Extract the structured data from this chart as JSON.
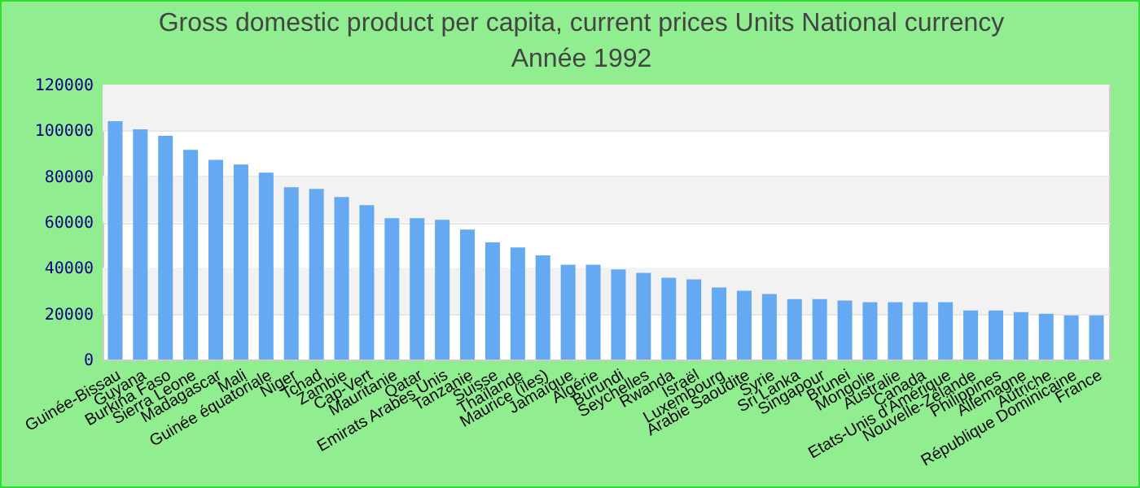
{
  "chart_data": {
    "type": "bar",
    "title": "Gross domestic product per capita, current prices Units National currency",
    "subtitle": "Année 1992",
    "categories": [
      "Guinée-Bissau",
      "Guyana",
      "Burkina Faso",
      "Sierra Leone",
      "Madagascar",
      "Mali",
      "Guinée équatoriale",
      "Niger",
      "Tchad",
      "Zambie",
      "Cap-Vert",
      "Mauritanie",
      "Qatar",
      "Emirats Arabes Unis",
      "Tanzanie",
      "Suisse",
      "Thaïlande",
      "Maurice (îles)",
      "Jamaïque",
      "Algérie",
      "Burundi",
      "Seychelles",
      "Rwanda",
      "Israël",
      "Luxembourg",
      "Arabie Saoudite",
      "Syrie",
      "Sri Lanka",
      "Singapour",
      "Brunei",
      "Mongolie",
      "Australie",
      "Canada",
      "Etats-Unis d'Amérique",
      "Nouvelle-Zélande",
      "Philippines",
      "Allemagne",
      "Autriche",
      "République Dominicaine",
      "France"
    ],
    "values": [
      104000,
      100500,
      97600,
      91500,
      87200,
      85100,
      81600,
      75200,
      74500,
      70900,
      67400,
      61700,
      61700,
      61000,
      56700,
      51100,
      48900,
      45400,
      41400,
      41400,
      39300,
      37800,
      35700,
      35000,
      31400,
      30000,
      28600,
      26400,
      26400,
      25700,
      25000,
      25000,
      25000,
      25000,
      21400,
      21400,
      20700,
      20000,
      19300,
      19300
    ],
    "color": "#64a9f2",
    "ylim": [
      0,
      120000
    ],
    "yticks": [
      0,
      20000,
      40000,
      60000,
      80000,
      100000,
      120000
    ],
    "grid": "y"
  }
}
